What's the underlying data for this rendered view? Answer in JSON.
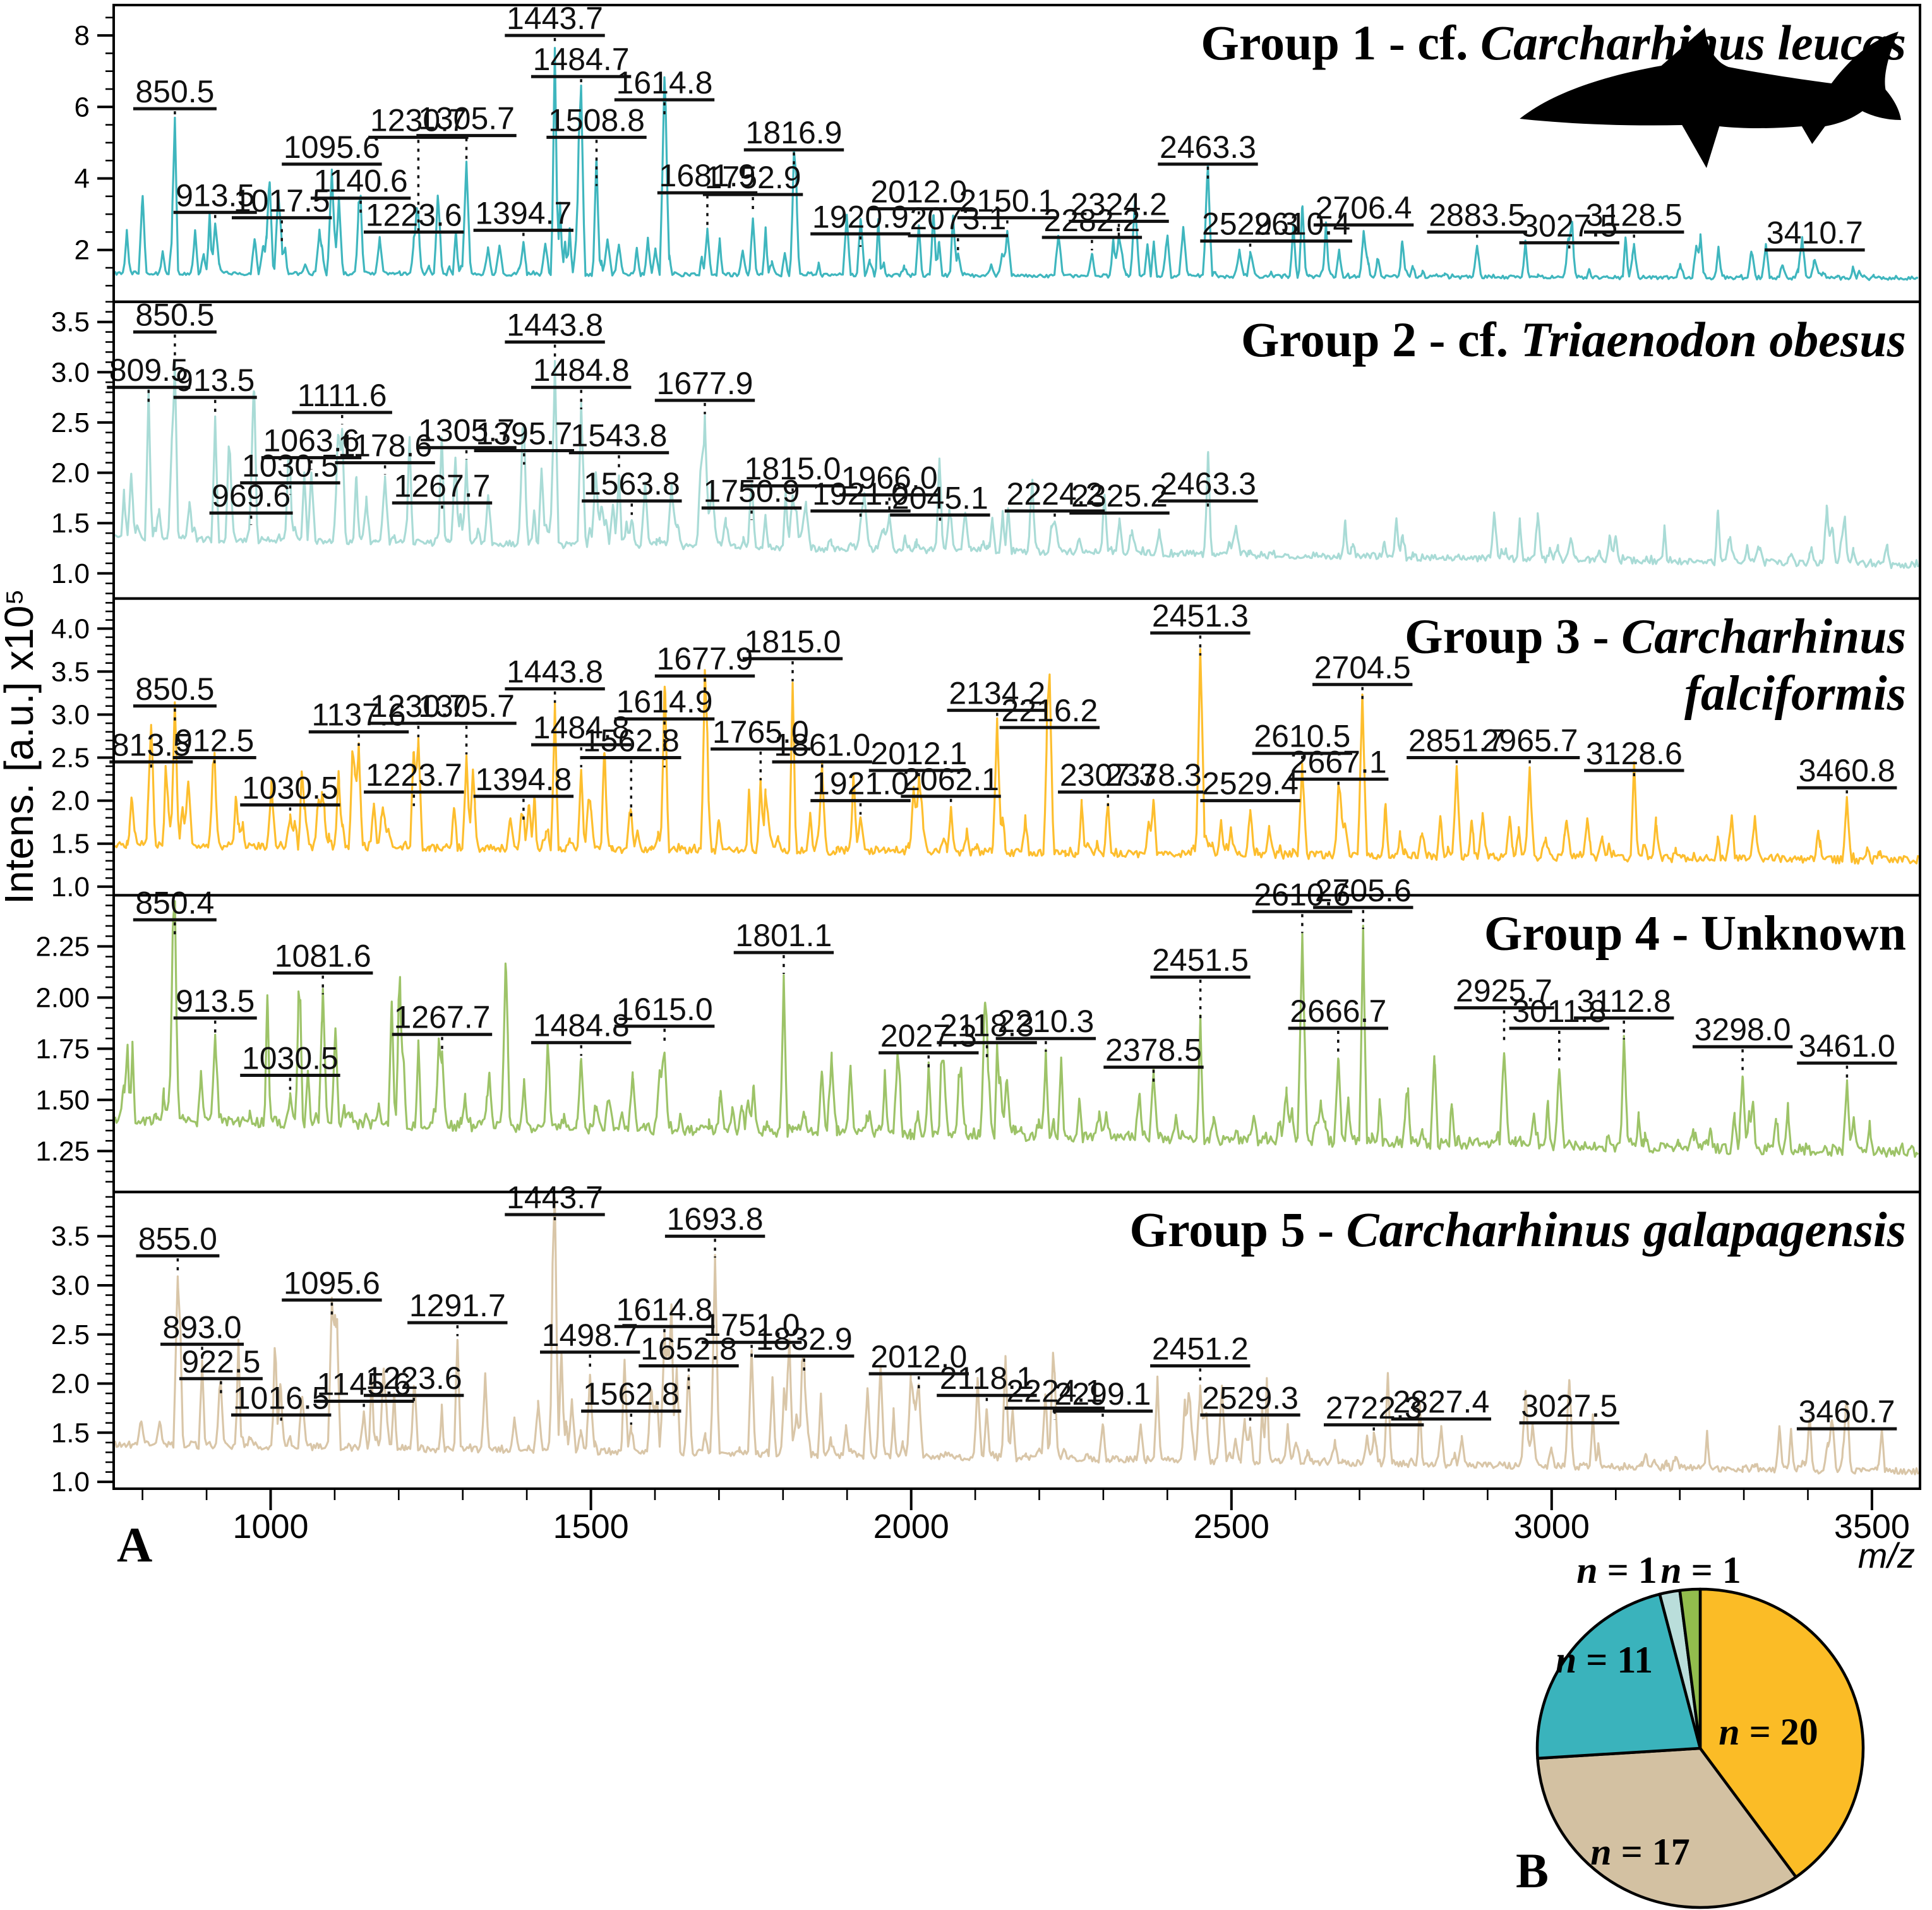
{
  "figure": {
    "panel_label_a": "A",
    "panel_label_b": "B",
    "y_axis_label": "Intens. [a.u.] x10⁵",
    "x_axis_label": "m/z",
    "x_ticks": [
      1000,
      1500,
      2000,
      2500,
      3000,
      3500
    ],
    "x_minor_step": 100,
    "x_range": [
      755,
      3575
    ]
  },
  "chart_data": [
    {
      "type": "line",
      "title": "Group 1 - cf. Carcharhinus leucas",
      "title_prefix": "Group 1 - cf. ",
      "title_italic": "Carcharhinus leucas",
      "title_italic_line2": "",
      "color": "#3FB6BE",
      "ylim": [
        0.55,
        8.85
      ],
      "yticks": {
        "values": [
          2,
          4,
          6,
          8
        ],
        "labels": [
          "2",
          "4",
          "6",
          "8"
        ]
      },
      "ytick_minor_step": 0.5,
      "baseline_start": 1.35,
      "baseline_end": 1.2,
      "noise": 0.1,
      "minor_amp": 2.4,
      "minor_peaks": 160,
      "peaks": [
        [
          850.5,
          5.6,
          5.95
        ],
        [
          913.5,
          2.7,
          3.05
        ],
        [
          1017.5,
          2.0,
          2.9
        ],
        [
          1095.6,
          4.2,
          4.4
        ],
        [
          1140.6,
          2.95,
          3.45
        ],
        [
          1223.6,
          2.25,
          2.5
        ],
        [
          1230.7,
          2.3,
          5.15
        ],
        [
          1305.7,
          4.45,
          5.2
        ],
        [
          1394.7,
          2.2,
          2.55
        ],
        [
          1443.7,
          7.6,
          8.0
        ],
        [
          1484.7,
          6.5,
          6.85
        ],
        [
          1508.8,
          3.7,
          5.15
        ],
        [
          1614.8,
          5.7,
          6.2
        ],
        [
          1681.9,
          2.6,
          3.6
        ],
        [
          1752.9,
          2.9,
          3.55
        ],
        [
          1816.9,
          4.3,
          4.8
        ],
        [
          1920.9,
          2.0,
          2.45
        ],
        [
          2012.0,
          2.7,
          3.15
        ],
        [
          2073.1,
          1.9,
          2.4
        ],
        [
          2150.1,
          2.5,
          2.9
        ],
        [
          2282.2,
          1.9,
          2.35
        ],
        [
          2324.2,
          2.3,
          2.8
        ],
        [
          2463.3,
          3.9,
          4.4
        ],
        [
          2529.3,
          1.85,
          2.25
        ],
        [
          2610.4,
          1.95,
          2.25
        ],
        [
          2706.4,
          2.5,
          2.7
        ],
        [
          2883.5,
          2.15,
          2.5
        ],
        [
          3027.5,
          1.85,
          2.2
        ],
        [
          3128.5,
          2.1,
          2.5
        ],
        [
          3410.7,
          1.7,
          2.0
        ]
      ]
    },
    {
      "type": "line",
      "title": "Group 2 - cf. Triaenodon obesus",
      "title_prefix": "Group 2 - cf. ",
      "title_italic": "Triaenodon obesus",
      "title_italic_line2": "",
      "color": "#A9DBD6",
      "ylim": [
        0.75,
        3.7
      ],
      "yticks": {
        "values": [
          1.0,
          1.5,
          2.0,
          2.5,
          3.0,
          3.5
        ],
        "labels": [
          "1.0",
          "1.5",
          "2.0",
          "2.5",
          "3.0",
          "3.5"
        ]
      },
      "ytick_minor_step": 0.1,
      "baseline_start": 1.35,
      "baseline_end": 1.08,
      "noise": 0.07,
      "minor_amp": 0.95,
      "minor_peaks": 170,
      "peaks": [
        [
          809.5,
          2.65,
          2.85
        ],
        [
          850.5,
          3.1,
          3.4
        ],
        [
          913.5,
          2.55,
          2.75
        ],
        [
          969.6,
          1.45,
          1.6
        ],
        [
          1030.5,
          1.75,
          1.9
        ],
        [
          1063.6,
          2.0,
          2.15
        ],
        [
          1111.6,
          2.45,
          2.6
        ],
        [
          1178.6,
          1.95,
          2.1
        ],
        [
          1267.7,
          1.58,
          1.7
        ],
        [
          1305.7,
          2.1,
          2.25
        ],
        [
          1395.7,
          2.05,
          2.22
        ],
        [
          1443.8,
          3.1,
          3.3
        ],
        [
          1484.8,
          2.6,
          2.85
        ],
        [
          1543.8,
          2.0,
          2.2
        ],
        [
          1563.8,
          1.55,
          1.72
        ],
        [
          1677.9,
          2.55,
          2.72
        ],
        [
          1750.9,
          1.5,
          1.65
        ],
        [
          1815.0,
          1.75,
          1.87
        ],
        [
          1921.0,
          1.5,
          1.62
        ],
        [
          1966.0,
          1.6,
          1.78
        ],
        [
          2045.1,
          1.45,
          1.58
        ],
        [
          2224.2,
          1.5,
          1.62
        ],
        [
          2325.2,
          1.5,
          1.6
        ],
        [
          2463.3,
          1.6,
          1.72
        ]
      ]
    },
    {
      "type": "line",
      "title": "Group 3 - Carcharhinus falciformis",
      "title_prefix": "Group 3 - ",
      "title_italic": "Carcharhinus",
      "title_italic_line2": "falciformis",
      "color": "#FDBE2E",
      "ylim": [
        0.9,
        4.35
      ],
      "yticks": {
        "values": [
          1.0,
          1.5,
          2.0,
          2.5,
          3.0,
          3.5,
          4.0
        ],
        "labels": [
          "1.0",
          "1.5",
          "2.0",
          "2.5",
          "3.0",
          "3.5",
          "4.0"
        ]
      },
      "ytick_minor_step": 0.1,
      "baseline_start": 1.48,
      "baseline_end": 1.3,
      "noise": 0.09,
      "minor_amp": 1.0,
      "minor_peaks": 185,
      "peaks": [
        [
          813.5,
          2.3,
          2.45
        ],
        [
          850.5,
          2.85,
          3.1
        ],
        [
          912.5,
          2.35,
          2.5
        ],
        [
          1030.5,
          1.8,
          1.95
        ],
        [
          1137.6,
          2.6,
          2.8
        ],
        [
          1223.7,
          1.9,
          2.1
        ],
        [
          1230.7,
          2.7,
          2.9
        ],
        [
          1305.7,
          2.5,
          2.9
        ],
        [
          1394.8,
          1.7,
          2.05
        ],
        [
          1443.8,
          3.1,
          3.3
        ],
        [
          1484.8,
          2.35,
          2.65
        ],
        [
          1562.8,
          1.75,
          2.5
        ],
        [
          1614.9,
          2.35,
          2.95
        ],
        [
          1677.9,
          3.2,
          3.45
        ],
        [
          1765.0,
          2.2,
          2.6
        ],
        [
          1815.0,
          3.35,
          3.65
        ],
        [
          1861.0,
          2.3,
          2.45
        ],
        [
          1921.0,
          1.8,
          2.0
        ],
        [
          2012.1,
          2.2,
          2.35
        ],
        [
          2062.1,
          1.9,
          2.05
        ],
        [
          2134.2,
          2.9,
          3.05
        ],
        [
          2216.2,
          2.75,
          2.85
        ],
        [
          2307.3,
          1.9,
          2.1
        ],
        [
          2378.3,
          2.0,
          2.1
        ],
        [
          2451.3,
          3.65,
          3.95
        ],
        [
          2529.4,
          1.9,
          2.0
        ],
        [
          2610.5,
          2.4,
          2.55
        ],
        [
          2667.1,
          2.1,
          2.25
        ],
        [
          2704.5,
          3.1,
          3.35
        ],
        [
          2851.7,
          2.35,
          2.5
        ],
        [
          2965.7,
          2.35,
          2.5
        ],
        [
          3128.6,
          2.2,
          2.35
        ],
        [
          3460.8,
          2.0,
          2.15
        ]
      ]
    },
    {
      "type": "line",
      "title": "Group 4 - Unknown",
      "title_prefix": "Group 4 - Unknown",
      "title_italic": "",
      "title_italic_line2": "",
      "color": "#9DC368",
      "ylim": [
        1.05,
        2.5
      ],
      "yticks": {
        "values": [
          1.25,
          1.5,
          1.75,
          2.0,
          2.25
        ],
        "labels": [
          "1.25",
          "1.50",
          "1.75",
          "2.00",
          "2.25"
        ]
      },
      "ytick_minor_step": 0.05,
      "baseline_start": 1.4,
      "baseline_end": 1.24,
      "noise": 0.05,
      "minor_amp": 0.55,
      "minor_peaks": 185,
      "peaks": [
        [
          850.4,
          2.28,
          2.38
        ],
        [
          913.5,
          1.8,
          1.9
        ],
        [
          1030.5,
          1.52,
          1.62
        ],
        [
          1081.6,
          2.0,
          2.12
        ],
        [
          1267.7,
          1.72,
          1.82
        ],
        [
          1484.8,
          1.7,
          1.78
        ],
        [
          1615.0,
          1.75,
          1.86
        ],
        [
          1801.1,
          2.1,
          2.22
        ],
        [
          2027.3,
          1.62,
          1.73
        ],
        [
          2118.3,
          1.67,
          1.78
        ],
        [
          2210.3,
          1.72,
          1.8
        ],
        [
          2378.5,
          1.55,
          1.66
        ],
        [
          2451.5,
          1.88,
          2.1
        ],
        [
          2610.6,
          2.3,
          2.42
        ],
        [
          2666.7,
          1.7,
          1.85
        ],
        [
          2705.6,
          2.32,
          2.44
        ],
        [
          2925.7,
          1.75,
          1.95
        ],
        [
          3011.8,
          1.65,
          1.85
        ],
        [
          3112.8,
          1.78,
          1.9
        ],
        [
          3298.0,
          1.63,
          1.76
        ],
        [
          3461.0,
          1.58,
          1.68
        ]
      ]
    },
    {
      "type": "line",
      "title": "Group 5 - Carcharhinus galapagensis",
      "title_prefix": "Group 5 - ",
      "title_italic": "Carcharhinus galapagensis",
      "title_italic_line2": "",
      "color": "#D9C6A8",
      "ylim": [
        0.93,
        3.95
      ],
      "yticks": {
        "values": [
          1.0,
          1.5,
          2.0,
          2.5,
          3.0,
          3.5
        ],
        "labels": [
          "1.0",
          "1.5",
          "2.0",
          "2.5",
          "3.0",
          "3.5"
        ]
      },
      "ytick_minor_step": 0.1,
      "baseline_start": 1.38,
      "baseline_end": 1.1,
      "noise": 0.07,
      "minor_amp": 1.3,
      "minor_peaks": 170,
      "peaks": [
        [
          855.0,
          3.1,
          3.3
        ],
        [
          893.0,
          2.2,
          2.4
        ],
        [
          922.5,
          1.85,
          2.05
        ],
        [
          1016.5,
          1.55,
          1.68
        ],
        [
          1095.6,
          2.65,
          2.85
        ],
        [
          1145.6,
          1.7,
          1.82
        ],
        [
          1223.6,
          1.75,
          1.88
        ],
        [
          1291.7,
          2.45,
          2.62
        ],
        [
          1443.7,
          3.6,
          3.72
        ],
        [
          1498.7,
          2.1,
          2.32
        ],
        [
          1562.8,
          1.55,
          1.72
        ],
        [
          1614.8,
          2.4,
          2.58
        ],
        [
          1652.8,
          1.9,
          2.18
        ],
        [
          1693.8,
          3.25,
          3.5
        ],
        [
          1751.0,
          2.2,
          2.42
        ],
        [
          1832.9,
          2.1,
          2.28
        ],
        [
          2012.0,
          1.9,
          2.1
        ],
        [
          2118.1,
          1.75,
          1.88
        ],
        [
          2224.1,
          1.6,
          1.75
        ],
        [
          2299.1,
          1.6,
          1.72
        ],
        [
          2451.2,
          1.95,
          2.18
        ],
        [
          2529.3,
          1.55,
          1.68
        ],
        [
          2722.3,
          1.45,
          1.58
        ],
        [
          2827.4,
          1.55,
          1.64
        ],
        [
          3027.5,
          1.5,
          1.6
        ],
        [
          3460.7,
          1.45,
          1.54
        ]
      ]
    },
    {
      "type": "pie",
      "center": [
        2692,
        2768
      ],
      "radius_x": 258,
      "radius_y": 252,
      "slices": [
        {
          "n_label": "n = 20",
          "value": 20,
          "color": "#FBBC26",
          "label_x": 2800,
          "label_y": 2762,
          "label_inside": true
        },
        {
          "n_label": "n = 17",
          "value": 17,
          "color": "#D3C1A2",
          "label_x": 2597,
          "label_y": 2952,
          "label_inside": true
        },
        {
          "n_label": "n = 11",
          "value": 11,
          "color": "#3AB3BC",
          "label_x": 2540,
          "label_y": 2648,
          "label_inside": true
        },
        {
          "n_label": "n = 1",
          "value": 1,
          "color": "#BADEDB",
          "label_x": 2560,
          "label_y": 2506,
          "label_inside": false
        },
        {
          "n_label": "n = 1",
          "value": 1,
          "color": "#92BD4D",
          "label_x": 2693,
          "label_y": 2506,
          "label_inside": false
        }
      ]
    }
  ],
  "icons": {
    "shark": "shark-silhouette"
  }
}
